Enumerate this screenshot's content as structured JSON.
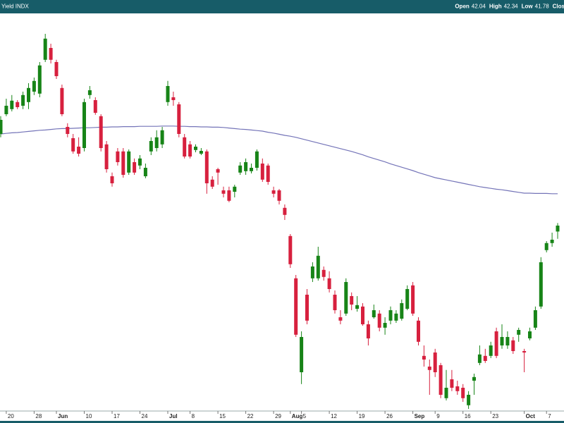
{
  "chart_data": {
    "type": "candlestick",
    "title": "Yield INDX",
    "quote": [
      {
        "label": "Open",
        "value": 42.04
      },
      {
        "label": "High",
        "value": 42.34
      },
      {
        "label": "Low",
        "value": 41.78
      },
      {
        "label": "Clos"
      }
    ],
    "categories": [
      null,
      "20",
      null,
      null,
      null,
      null,
      "28",
      null,
      null,
      null,
      "Jun",
      null,
      null,
      null,
      null,
      "10",
      null,
      null,
      null,
      null,
      "17",
      null,
      null,
      null,
      null,
      "24",
      null,
      null,
      null,
      null,
      "Jul",
      null,
      null,
      null,
      "8",
      null,
      null,
      null,
      null,
      "15",
      null,
      null,
      null,
      null,
      "22",
      null,
      null,
      null,
      null,
      "29",
      null,
      null,
      "Aug",
      null,
      "5",
      null,
      null,
      null,
      null,
      "12",
      null,
      null,
      null,
      null,
      "19",
      null,
      null,
      null,
      null,
      "26",
      null,
      null,
      null,
      null,
      "Sep",
      null,
      null,
      null,
      "9",
      null,
      null,
      null,
      null,
      "16",
      null,
      null,
      null,
      null,
      "23",
      null,
      null,
      null,
      null,
      null,
      "Oct",
      null,
      null,
      null,
      "7",
      null,
      null
    ],
    "ohlc": [
      [
        45.5,
        46.13,
        45.38,
        46.0
      ],
      [
        46.2,
        46.75,
        46.13,
        46.5
      ],
      [
        46.38,
        46.88,
        46.3,
        46.68
      ],
      [
        46.63,
        46.7,
        46.38,
        46.45
      ],
      [
        46.5,
        47.0,
        46.38,
        46.88
      ],
      [
        46.63,
        47.3,
        46.38,
        47.13
      ],
      [
        47.0,
        47.5,
        46.88,
        47.38
      ],
      [
        46.93,
        48.05,
        46.8,
        47.93
      ],
      [
        48.13,
        49.05,
        48.05,
        48.88
      ],
      [
        48.55,
        48.7,
        48.0,
        48.13
      ],
      [
        48.05,
        48.13,
        47.45,
        47.55
      ],
      [
        47.13,
        47.25,
        46.13,
        46.2
      ],
      [
        45.75,
        45.88,
        45.38,
        45.5
      ],
      [
        45.35,
        45.5,
        44.8,
        44.88
      ],
      [
        45.05,
        45.38,
        44.7,
        44.8
      ],
      [
        45.0,
        46.75,
        44.88,
        46.63
      ],
      [
        46.88,
        47.2,
        46.75,
        47.05
      ],
      [
        46.7,
        46.8,
        46.18,
        46.25
      ],
      [
        46.13,
        46.2,
        44.88,
        45.0
      ],
      [
        45.13,
        45.25,
        44.13,
        44.25
      ],
      [
        44.0,
        44.13,
        43.63,
        43.75
      ],
      [
        44.88,
        45.0,
        44.38,
        44.5
      ],
      [
        44.88,
        45.0,
        43.95,
        44.05
      ],
      [
        44.13,
        44.95,
        44.05,
        44.88
      ],
      [
        44.5,
        44.63,
        44.05,
        44.13
      ],
      [
        44.38,
        44.75,
        44.25,
        44.63
      ],
      [
        44.0,
        44.45,
        43.93,
        44.3
      ],
      [
        44.88,
        45.38,
        44.75,
        45.25
      ],
      [
        45.0,
        45.63,
        44.88,
        45.38
      ],
      [
        45.13,
        45.75,
        45.0,
        45.63
      ],
      [
        46.63,
        47.38,
        46.5,
        47.2
      ],
      [
        46.8,
        47.0,
        46.5,
        46.7
      ],
      [
        46.55,
        46.63,
        45.38,
        45.5
      ],
      [
        45.38,
        45.5,
        44.63,
        44.7
      ],
      [
        45.13,
        45.25,
        44.63,
        44.7
      ],
      [
        44.93,
        45.13,
        44.85,
        45.05
      ],
      [
        44.8,
        45.0,
        44.75,
        44.9
      ],
      [
        44.88,
        44.95,
        43.38,
        43.75
      ],
      [
        43.88,
        44.0,
        43.55,
        43.63
      ],
      [
        44.25,
        44.3,
        43.7,
        44.13
      ],
      [
        43.5,
        43.63,
        43.25,
        43.38
      ],
      [
        43.5,
        43.63,
        43.08,
        43.13
      ],
      [
        43.45,
        43.7,
        43.25,
        43.63
      ],
      [
        44.13,
        44.5,
        44.05,
        44.38
      ],
      [
        44.18,
        44.63,
        44.05,
        44.5
      ],
      [
        44.18,
        44.45,
        44.1,
        44.3
      ],
      [
        44.3,
        44.95,
        44.2,
        44.88
      ],
      [
        44.45,
        44.63,
        43.8,
        43.88
      ],
      [
        44.38,
        44.45,
        43.7,
        43.8
      ],
      [
        43.5,
        43.63,
        43.25,
        43.38
      ],
      [
        43.5,
        43.55,
        43.0,
        43.13
      ],
      [
        42.88,
        43.0,
        42.45,
        42.63
      ],
      [
        41.88,
        41.95,
        40.75,
        40.88
      ],
      [
        40.38,
        40.5,
        38.3,
        38.38
      ],
      [
        37.05,
        38.5,
        36.63,
        38.3
      ],
      [
        39.8,
        40.0,
        38.75,
        38.88
      ],
      [
        40.38,
        40.95,
        40.25,
        40.8
      ],
      [
        40.38,
        41.5,
        40.3,
        41.18
      ],
      [
        40.68,
        40.8,
        40.3,
        40.43
      ],
      [
        40.38,
        40.63,
        39.88,
        40.0
      ],
      [
        39.8,
        39.95,
        39.13,
        39.25
      ],
      [
        39.0,
        39.25,
        38.75,
        38.88
      ],
      [
        39.13,
        40.38,
        39.05,
        40.25
      ],
      [
        39.75,
        39.88,
        39.25,
        39.45
      ],
      [
        39.3,
        39.75,
        39.2,
        39.43
      ],
      [
        39.38,
        39.5,
        38.7,
        38.75
      ],
      [
        38.75,
        38.88,
        38.0,
        38.25
      ],
      [
        39.0,
        39.45,
        38.95,
        39.25
      ],
      [
        39.13,
        39.25,
        38.5,
        38.63
      ],
      [
        38.63,
        39.0,
        38.38,
        38.8
      ],
      [
        38.88,
        39.38,
        38.75,
        39.25
      ],
      [
        38.88,
        39.25,
        38.8,
        39.13
      ],
      [
        38.95,
        39.63,
        38.88,
        39.5
      ],
      [
        39.3,
        40.13,
        39.25,
        40.0
      ],
      [
        40.13,
        40.25,
        39.05,
        39.13
      ],
      [
        38.88,
        39.0,
        38.0,
        38.13
      ],
      [
        37.63,
        38.0,
        37.25,
        37.5
      ],
      [
        37.25,
        37.5,
        36.25,
        37.13
      ],
      [
        37.75,
        37.88,
        36.88,
        37.05
      ],
      [
        37.3,
        37.38,
        36.13,
        36.25
      ],
      [
        36.13,
        37.13,
        36.05,
        36.5
      ],
      [
        36.8,
        37.13,
        36.38,
        36.5
      ],
      [
        36.55,
        36.75,
        36.25,
        36.38
      ],
      [
        36.5,
        36.63,
        36.0,
        36.13
      ],
      [
        35.88,
        36.38,
        35.75,
        36.25
      ],
      [
        36.75,
        37.0,
        36.25,
        36.88
      ],
      [
        37.38,
        38.0,
        37.3,
        37.68
      ],
      [
        37.63,
        37.88,
        37.38,
        37.45
      ],
      [
        37.63,
        38.13,
        37.55,
        38.0
      ],
      [
        38.5,
        38.63,
        37.55,
        37.63
      ],
      [
        38.0,
        38.75,
        37.88,
        38.3
      ],
      [
        38.0,
        38.5,
        37.88,
        38.3
      ],
      [
        38.18,
        38.3,
        37.7,
        37.8
      ],
      [
        38.38,
        38.63,
        38.13,
        38.55
      ],
      [
        37.8,
        37.88,
        37.05,
        37.75
      ],
      [
        38.25,
        38.63,
        38.18,
        38.5
      ],
      [
        38.63,
        39.38,
        38.55,
        39.25
      ],
      [
        39.38,
        41.13,
        39.3,
        40.95
      ],
      [
        41.38,
        41.7,
        41.3,
        41.63
      ],
      [
        41.63,
        42.0,
        41.5,
        41.75
      ],
      [
        42.04,
        42.34,
        41.78,
        42.25
      ]
    ],
    "up_color": "#178417",
    "down_color": "#d7203e",
    "overlays": [
      {
        "type": "line",
        "color": "#7474b8",
        "values": [
          45.5,
          45.52,
          45.54,
          45.55,
          45.57,
          45.59,
          45.61,
          45.63,
          45.64,
          45.66,
          45.68,
          45.69,
          45.69,
          45.7,
          45.71,
          45.72,
          45.72,
          45.73,
          45.74,
          45.74,
          45.75,
          45.75,
          45.76,
          45.76,
          45.76,
          45.77,
          45.77,
          45.77,
          45.77,
          45.78,
          45.78,
          45.78,
          45.77,
          45.77,
          45.76,
          45.76,
          45.75,
          45.75,
          45.74,
          45.74,
          45.73,
          45.71,
          45.69,
          45.67,
          45.66,
          45.64,
          45.62,
          45.6,
          45.56,
          45.53,
          45.49,
          45.45,
          45.42,
          45.38,
          45.33,
          45.28,
          45.23,
          45.18,
          45.13,
          45.08,
          45.03,
          44.98,
          44.93,
          44.88,
          44.82,
          44.76,
          44.69,
          44.63,
          44.57,
          44.51,
          44.44,
          44.38,
          44.32,
          44.26,
          44.2,
          44.13,
          44.07,
          44.01,
          43.95,
          43.91,
          43.87,
          43.83,
          43.79,
          43.75,
          43.71,
          43.67,
          43.63,
          43.6,
          43.57,
          43.54,
          43.52,
          43.49,
          43.46,
          43.43,
          43.4,
          43.4,
          43.39,
          43.39,
          43.39,
          43.38,
          43.38
        ]
      }
    ],
    "ylim": [
      35.7,
      49.75
    ]
  }
}
